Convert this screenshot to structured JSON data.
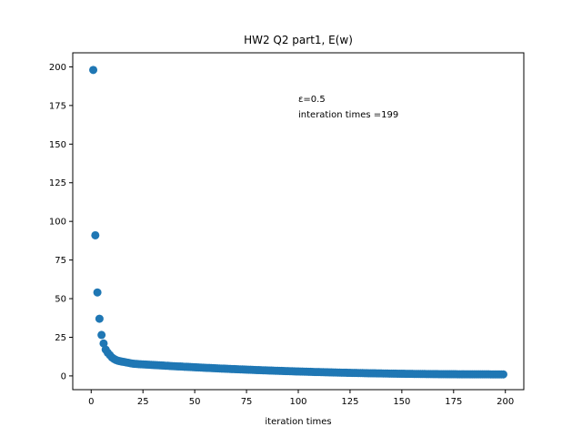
{
  "chart_data": {
    "type": "scatter",
    "title": "HW2 Q2 part1, E(w)",
    "xlabel": "iteration times",
    "ylabel": "",
    "xlim": [
      -8.9,
      208.9
    ],
    "ylim": [
      -8.9,
      209.1
    ],
    "xticks": [
      0,
      25,
      50,
      75,
      100,
      125,
      150,
      175,
      200
    ],
    "yticks": [
      0,
      25,
      50,
      75,
      100,
      125,
      150,
      175,
      200
    ],
    "annotations": [
      "ε=0.5",
      "interation times =199"
    ],
    "annotation_pos": [
      100,
      178
    ],
    "grid": false,
    "marker_color": "#1f77b4",
    "series": [
      {
        "x": [
          1,
          2,
          3,
          4,
          5,
          6,
          7,
          8,
          9,
          10,
          11,
          12,
          13,
          14,
          15,
          16,
          17,
          18,
          19,
          20
        ],
        "y": [
          198,
          91,
          54,
          37,
          26.5,
          21,
          17,
          15,
          13.5,
          12,
          11,
          10.3,
          9.8,
          9.5,
          9.2,
          9.0,
          8.7,
          8.5,
          8.2,
          8.0
        ]
      }
    ],
    "tail": {
      "x_start": 21,
      "x_end": 199,
      "y_start": 7.8,
      "y_end": 1.0
    }
  }
}
